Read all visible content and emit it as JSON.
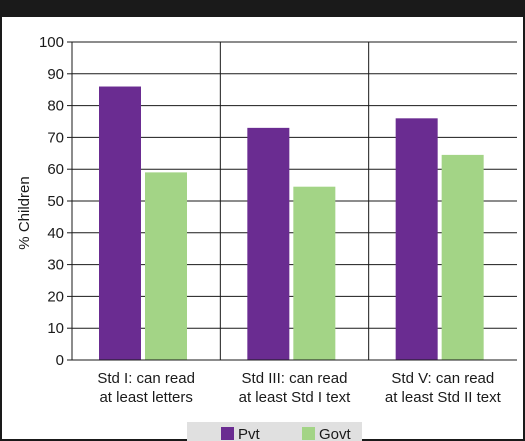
{
  "chart_data": {
    "type": "bar",
    "title": "",
    "xlabel": "",
    "ylabel": "% Children",
    "ylim": [
      0,
      100
    ],
    "yticks": [
      0,
      10,
      20,
      30,
      40,
      50,
      60,
      70,
      80,
      90,
      100
    ],
    "categories": [
      [
        "Std I: can read",
        "at least letters"
      ],
      [
        "Std III: can read",
        "at least Std I text"
      ],
      [
        "Std V: can read",
        "at least Std II text"
      ]
    ],
    "series": [
      {
        "name": "Pvt",
        "values": [
          86,
          73,
          76
        ],
        "color": "#6a2c91"
      },
      {
        "name": "Govt",
        "values": [
          59,
          54.5,
          64.5
        ],
        "color": "#a3d486"
      }
    ],
    "grid": true,
    "legend_position": "bottom-center"
  }
}
